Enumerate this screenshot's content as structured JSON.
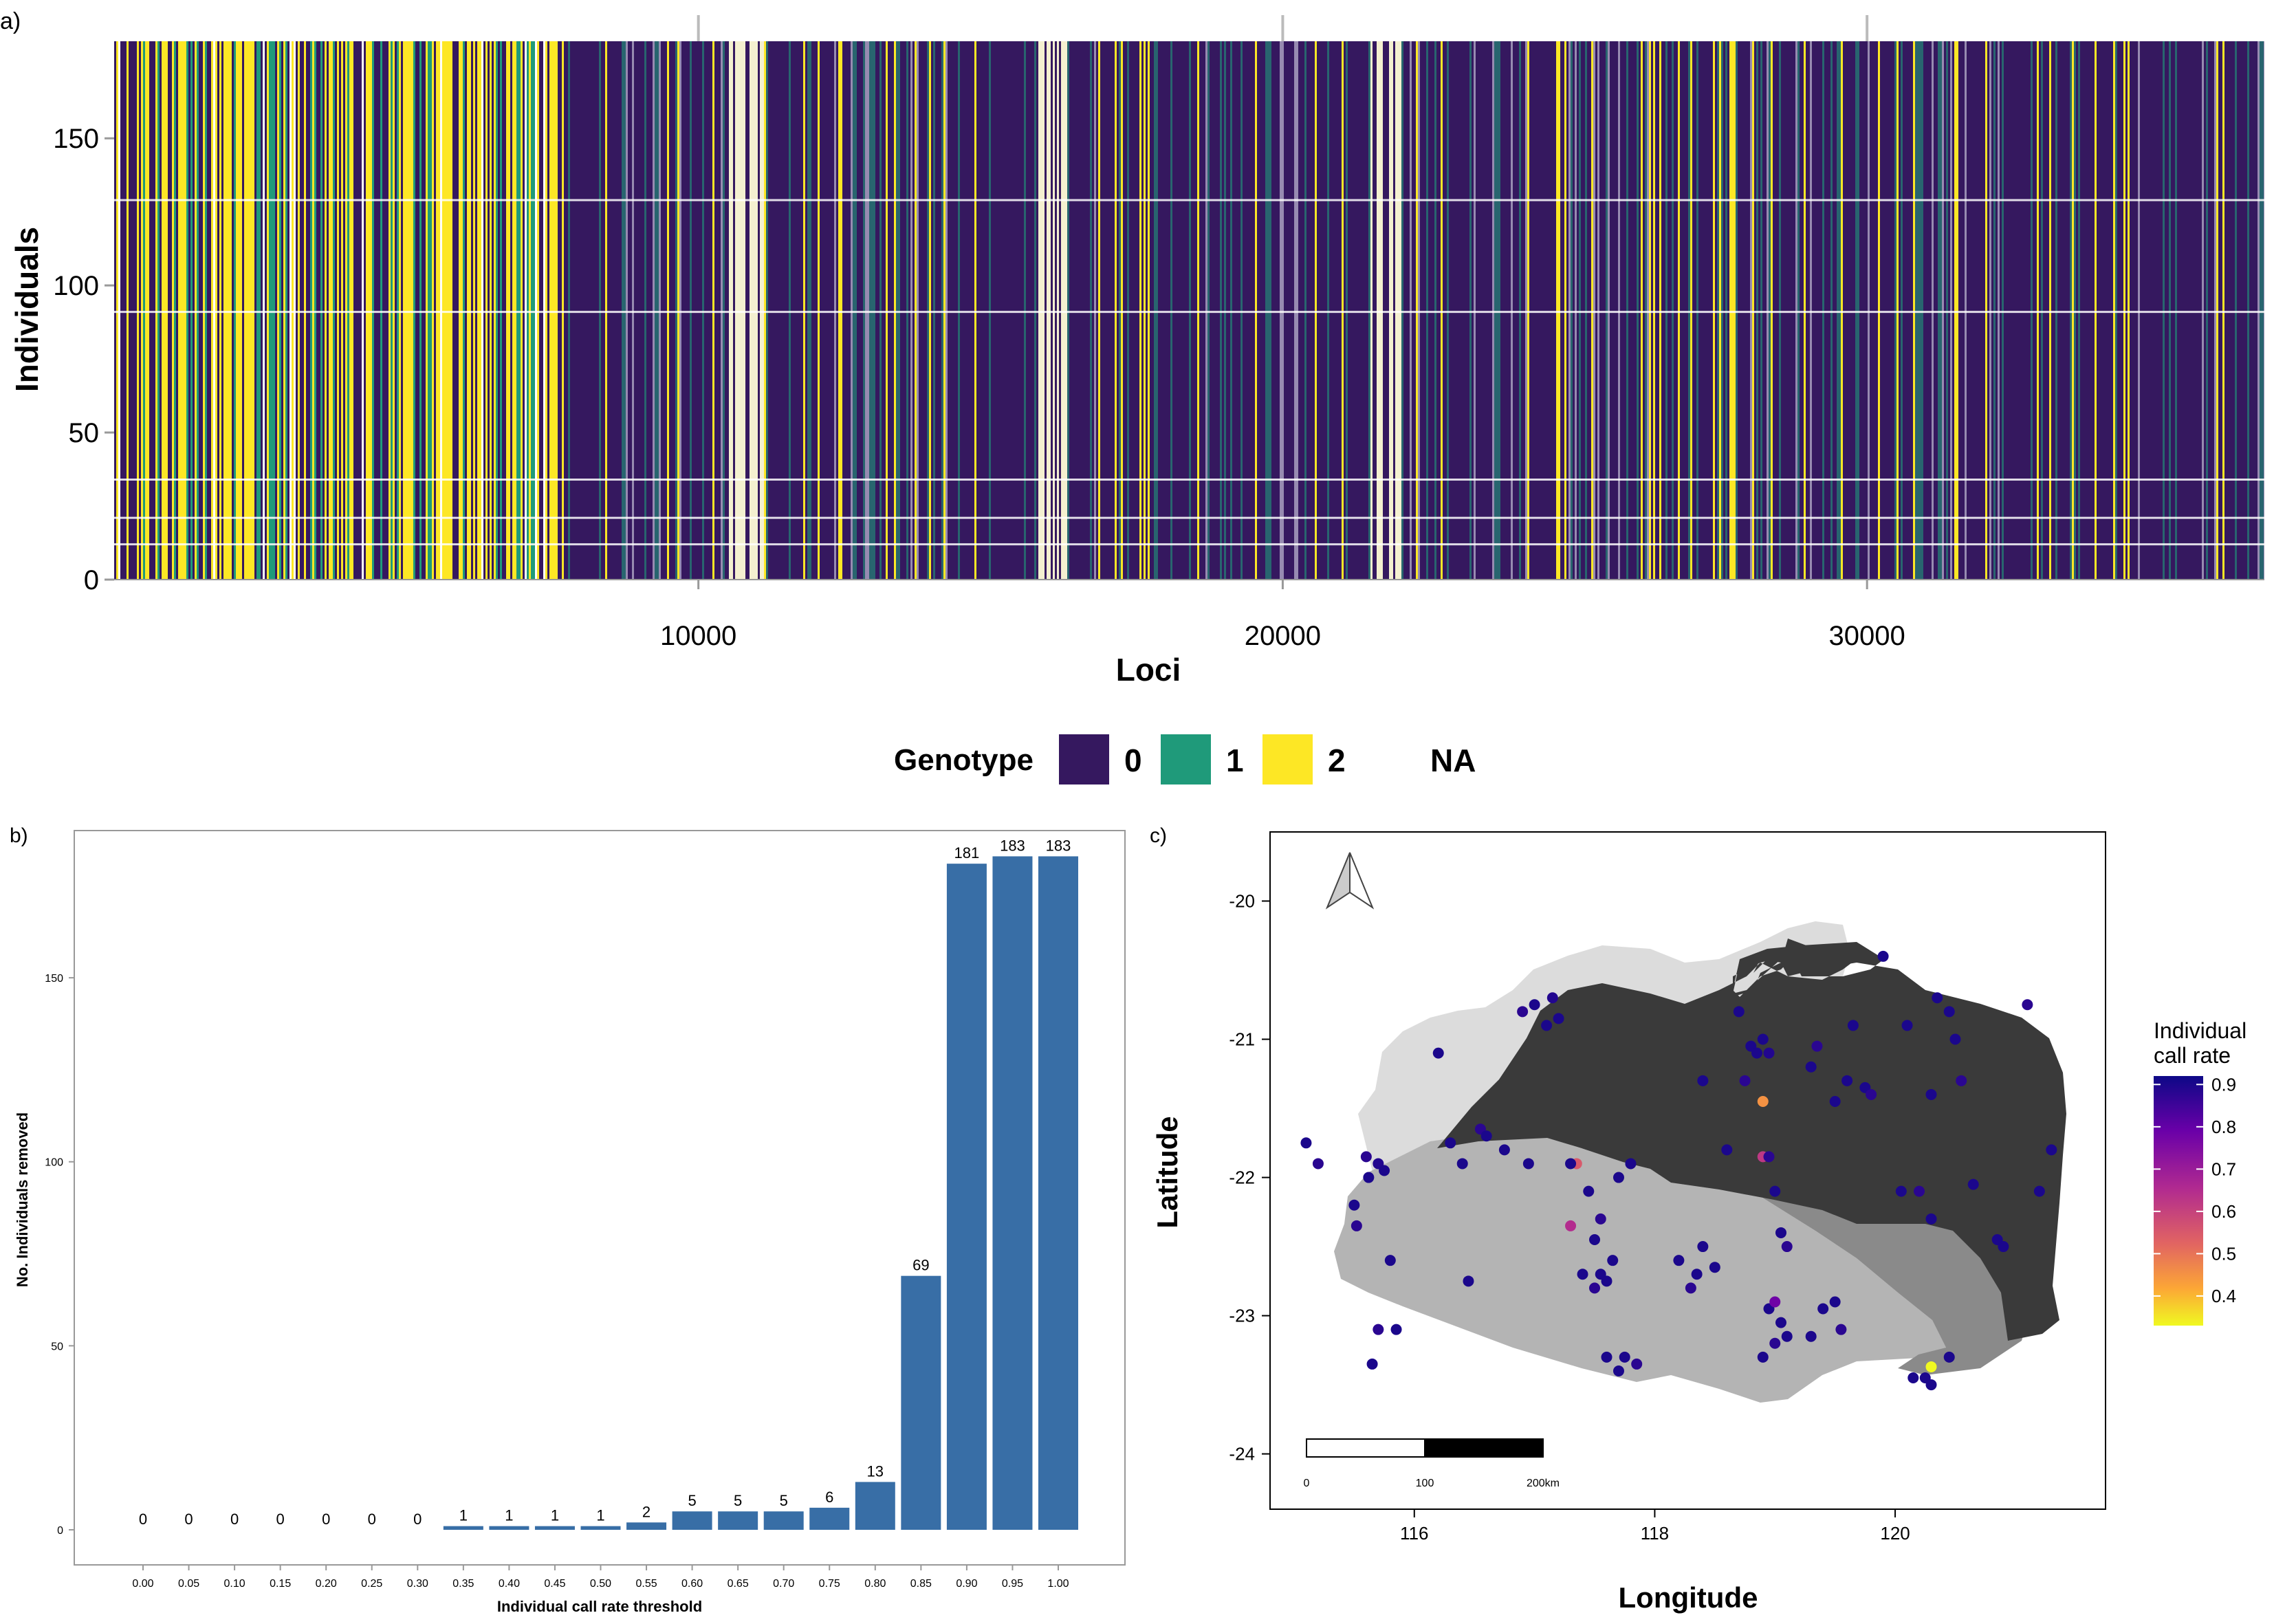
{
  "panel_labels": {
    "a": "a)",
    "b": "b)",
    "c": "c)"
  },
  "colors": {
    "g0": "#35185f",
    "g1": "#1f9a7a",
    "g2": "#fde725",
    "bar": "#386ea6",
    "map_light": "#dcdcdc",
    "map_mid": "#b4b4b4",
    "map_midd": "#8a8a8a",
    "map_dark": "#3a3a3a"
  },
  "chart_data": [
    {
      "id": "a",
      "type": "heatmap",
      "xlabel": "Loci",
      "ylabel": "Individuals",
      "xlim": [
        1,
        36800
      ],
      "ylim": [
        0,
        183
      ],
      "x_ticks": [
        10000,
        20000,
        30000
      ],
      "y_ticks": [
        0,
        50,
        100,
        150
      ],
      "legend": {
        "title": "Genotype",
        "entries": [
          "0",
          "1",
          "2",
          "NA"
        ]
      }
    },
    {
      "id": "b",
      "type": "bar",
      "xlabel": "Individual call rate threshold",
      "ylabel": "No. Individuals removed",
      "ylim": [
        0,
        190
      ],
      "y_ticks": [
        0,
        50,
        100,
        150
      ],
      "categories": [
        "0.00",
        "0.05",
        "0.10",
        "0.15",
        "0.20",
        "0.25",
        "0.30",
        "0.35",
        "0.40",
        "0.45",
        "0.50",
        "0.55",
        "0.60",
        "0.65",
        "0.70",
        "0.75",
        "0.80",
        "0.85",
        "0.90",
        "0.95",
        "1.00"
      ],
      "values": [
        0,
        0,
        0,
        0,
        0,
        0,
        0,
        1,
        1,
        1,
        1,
        2,
        5,
        5,
        5,
        6,
        13,
        69,
        181,
        183,
        183
      ]
    },
    {
      "id": "c",
      "type": "scatter",
      "xlabel": "Longitude",
      "ylabel": "Latitude",
      "xlim": [
        114.8,
        121.75
      ],
      "ylim": [
        -24.4,
        -19.5
      ],
      "x_ticks": [
        116,
        118,
        120
      ],
      "y_ticks": [
        -24,
        -23,
        -22,
        -21,
        -20
      ],
      "legend": {
        "title_line1": "Individual",
        "title_line2": "call rate",
        "ticks": [
          "0.4",
          "0.5",
          "0.6",
          "0.7",
          "0.8",
          "0.9"
        ],
        "range": [
          0.33,
          0.92
        ]
      },
      "scale_bar": {
        "labels": [
          "0",
          "100",
          "200km"
        ]
      },
      "points": [
        [
          115.1,
          -21.75,
          0.9
        ],
        [
          115.2,
          -21.9,
          0.88
        ],
        [
          115.6,
          -21.85,
          0.88
        ],
        [
          115.7,
          -21.9,
          0.89
        ],
        [
          115.62,
          -22.0,
          0.9
        ],
        [
          115.5,
          -22.2,
          0.9
        ],
        [
          115.52,
          -22.35,
          0.88
        ],
        [
          115.75,
          -21.95,
          0.9
        ],
        [
          115.8,
          -22.6,
          0.9
        ],
        [
          115.7,
          -23.1,
          0.88
        ],
        [
          115.85,
          -23.1,
          0.9
        ],
        [
          115.65,
          -23.35,
          0.9
        ],
        [
          116.2,
          -21.1,
          0.9
        ],
        [
          116.3,
          -21.75,
          0.9
        ],
        [
          116.4,
          -21.9,
          0.9
        ],
        [
          116.55,
          -21.65,
          0.88
        ],
        [
          116.6,
          -21.7,
          0.9
        ],
        [
          116.75,
          -21.8,
          0.9
        ],
        [
          116.95,
          -21.9,
          0.9
        ],
        [
          116.9,
          -20.8,
          0.88
        ],
        [
          117.0,
          -20.75,
          0.9
        ],
        [
          117.1,
          -20.9,
          0.9
        ],
        [
          117.15,
          -20.7,
          0.89
        ],
        [
          117.2,
          -20.85,
          0.9
        ],
        [
          116.45,
          -22.75,
          0.9
        ],
        [
          117.35,
          -21.9,
          0.55
        ],
        [
          117.3,
          -22.35,
          0.65
        ],
        [
          117.45,
          -22.1,
          0.9
        ],
        [
          117.5,
          -22.45,
          0.9
        ],
        [
          117.55,
          -22.3,
          0.88
        ],
        [
          117.6,
          -22.75,
          0.9
        ],
        [
          117.65,
          -22.6,
          0.9
        ],
        [
          117.7,
          -22.0,
          0.9
        ],
        [
          117.8,
          -21.9,
          0.9
        ],
        [
          117.4,
          -22.7,
          0.9
        ],
        [
          117.5,
          -22.8,
          0.88
        ],
        [
          117.55,
          -22.7,
          0.9
        ],
        [
          117.6,
          -23.3,
          0.9
        ],
        [
          117.7,
          -23.4,
          0.9
        ],
        [
          117.85,
          -23.35,
          0.88
        ],
        [
          117.75,
          -23.3,
          0.9
        ],
        [
          117.3,
          -21.9,
          0.9
        ],
        [
          118.4,
          -21.3,
          0.9
        ],
        [
          118.2,
          -22.6,
          0.9
        ],
        [
          118.3,
          -22.8,
          0.88
        ],
        [
          118.35,
          -22.7,
          0.9
        ],
        [
          118.4,
          -22.5,
          0.9
        ],
        [
          118.5,
          -22.65,
          0.9
        ],
        [
          118.6,
          -21.8,
          0.9
        ],
        [
          118.7,
          -20.8,
          0.9
        ],
        [
          118.75,
          -21.3,
          0.88
        ],
        [
          118.8,
          -21.05,
          0.9
        ],
        [
          118.85,
          -21.1,
          0.9
        ],
        [
          118.9,
          -21.0,
          0.9
        ],
        [
          118.95,
          -21.1,
          0.89
        ],
        [
          118.9,
          -21.45,
          0.45
        ],
        [
          118.9,
          -21.85,
          0.62
        ],
        [
          118.95,
          -21.85,
          0.88
        ],
        [
          119.0,
          -22.1,
          0.9
        ],
        [
          119.05,
          -22.4,
          0.9
        ],
        [
          119.1,
          -22.5,
          0.88
        ],
        [
          118.95,
          -22.95,
          0.9
        ],
        [
          119.0,
          -22.9,
          0.78
        ],
        [
          119.05,
          -23.05,
          0.9
        ],
        [
          119.1,
          -23.15,
          0.9
        ],
        [
          119.0,
          -23.2,
          0.88
        ],
        [
          118.9,
          -23.3,
          0.9
        ],
        [
          119.3,
          -21.2,
          0.9
        ],
        [
          119.35,
          -21.05,
          0.88
        ],
        [
          119.5,
          -21.45,
          0.9
        ],
        [
          119.6,
          -21.3,
          0.9
        ],
        [
          119.65,
          -20.9,
          0.9
        ],
        [
          119.75,
          -21.35,
          0.9
        ],
        [
          119.8,
          -21.4,
          0.88
        ],
        [
          119.4,
          -22.95,
          0.9
        ],
        [
          119.5,
          -22.9,
          0.9
        ],
        [
          119.3,
          -23.15,
          0.9
        ],
        [
          119.55,
          -23.1,
          0.88
        ],
        [
          119.9,
          -20.4,
          0.9
        ],
        [
          120.1,
          -20.9,
          0.9
        ],
        [
          120.05,
          -22.1,
          0.9
        ],
        [
          120.2,
          -22.1,
          0.88
        ],
        [
          120.3,
          -21.4,
          0.9
        ],
        [
          120.35,
          -20.7,
          0.9
        ],
        [
          120.45,
          -20.8,
          0.9
        ],
        [
          120.5,
          -21.0,
          0.9
        ],
        [
          120.55,
          -21.3,
          0.88
        ],
        [
          120.3,
          -22.3,
          0.9
        ],
        [
          120.65,
          -22.05,
          0.9
        ],
        [
          120.85,
          -22.45,
          0.9
        ],
        [
          120.9,
          -22.5,
          0.9
        ],
        [
          121.1,
          -20.75,
          0.88
        ],
        [
          121.3,
          -21.8,
          0.9
        ],
        [
          121.2,
          -22.1,
          0.9
        ],
        [
          120.15,
          -23.45,
          0.9
        ],
        [
          120.25,
          -23.45,
          0.9
        ],
        [
          120.3,
          -23.5,
          0.9
        ],
        [
          120.3,
          -23.37,
          0.33
        ],
        [
          120.45,
          -23.3,
          0.9
        ]
      ]
    }
  ]
}
